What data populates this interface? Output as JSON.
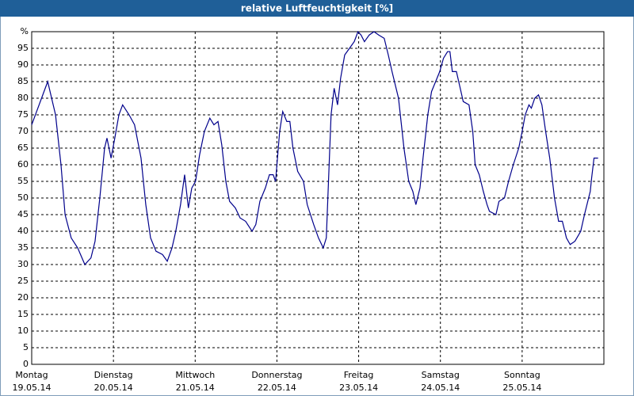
{
  "chart_data": {
    "type": "line",
    "title": "relative Luftfeuchtigkeit [%]",
    "x": [
      0,
      4.7,
      7,
      8.6,
      9.8,
      11.6,
      13.5,
      15.6,
      17.4,
      18.6,
      20,
      21.4,
      22.1,
      23.3,
      24.4,
      25.6,
      26.7,
      28.6,
      30.2,
      32.1,
      33.5,
      34.9,
      36.5,
      38.4,
      39.8,
      41.2,
      42.3,
      43.7,
      44.9,
      46,
      47,
      48.1,
      49.3,
      50.7,
      52.3,
      53.5,
      54.7,
      55.8,
      57,
      58.1,
      59.8,
      61.2,
      62.8,
      64.7,
      65.8,
      67,
      68.6,
      69.8,
      70.9,
      71.6,
      72.8,
      73.7,
      74.9,
      75.8,
      76.7,
      78.1,
      79.8,
      80.9,
      82.8,
      84.2,
      85.6,
      86.5,
      87.9,
      88.8,
      89.8,
      90.7,
      91.9,
      93.3,
      94.7,
      95.8,
      96.7,
      97.7,
      99.1,
      100.5,
      101.9,
      103.5,
      104.7,
      105.8,
      107.7,
      109.3,
      110.7,
      111.9,
      112.8,
      114,
      114.9,
      116.3,
      117.4,
      118.6,
      119.8,
      120.9,
      122.1,
      122.8,
      123.5,
      124.7,
      125.6,
      126.7,
      128.4,
      129.5,
      130.2,
      131.4,
      132.6,
      133.7,
      134.4,
      136.3,
      137.2,
      138.8,
      140,
      141.4,
      143,
      144,
      144.9,
      146,
      146.7,
      147.7,
      148.8,
      149.8,
      150.9,
      152.1,
      153.5,
      154.7,
      155.8,
      157,
      158.1,
      159.5,
      161.2,
      162.3,
      164,
      164.4,
      165.1,
      166.3
    ],
    "values": [
      72,
      85,
      75,
      60,
      45,
      38,
      35,
      30,
      32,
      37,
      50,
      65,
      68,
      62,
      68,
      75,
      78,
      75,
      72,
      62,
      48,
      38,
      34,
      33,
      31,
      35,
      40,
      48,
      57,
      47,
      53,
      55,
      63,
      70,
      74,
      72,
      73,
      66,
      55,
      49,
      47,
      44,
      43,
      40,
      42,
      49,
      53,
      57,
      57,
      55,
      70,
      76,
      73,
      73,
      65,
      58,
      55,
      48,
      42,
      38,
      35,
      38,
      75,
      83,
      78,
      86,
      93,
      95,
      97,
      100,
      99,
      97,
      99,
      100,
      99,
      98,
      93,
      88,
      80,
      65,
      55,
      52,
      48,
      53,
      62,
      75,
      82,
      85,
      88,
      92,
      94,
      94,
      88,
      88,
      84,
      79,
      78,
      70,
      60,
      57,
      52,
      48,
      46,
      45,
      49,
      50,
      55,
      60,
      65,
      70,
      75,
      78,
      77,
      80,
      81,
      78,
      70,
      62,
      50,
      43,
      43,
      38,
      36,
      37,
      40,
      45,
      52,
      56,
      62,
      62
    ],
    "line_color": "#00008b",
    "xlim": [
      0,
      168
    ],
    "xticks": [
      {
        "value": 0,
        "label": "Montag",
        "date": "19.05.14"
      },
      {
        "value": 24,
        "label": "Dienstag",
        "date": "20.05.14"
      },
      {
        "value": 48,
        "label": "Mittwoch",
        "date": "21.05.14"
      },
      {
        "value": 72,
        "label": "Donnerstag",
        "date": "22.05.14"
      },
      {
        "value": 96,
        "label": "Freitag",
        "date": "23.05.14"
      },
      {
        "value": 120,
        "label": "Samstag",
        "date": "24.05.14"
      },
      {
        "value": 144,
        "label": "Sonntag",
        "date": "25.05.14"
      }
    ],
    "ylim": [
      0,
      100
    ],
    "yticks": [
      0,
      5,
      10,
      15,
      20,
      25,
      30,
      35,
      40,
      45,
      50,
      55,
      60,
      65,
      70,
      75,
      80,
      85,
      90,
      95,
      {
        "value": 100,
        "label": "%"
      }
    ],
    "grid": true
  }
}
